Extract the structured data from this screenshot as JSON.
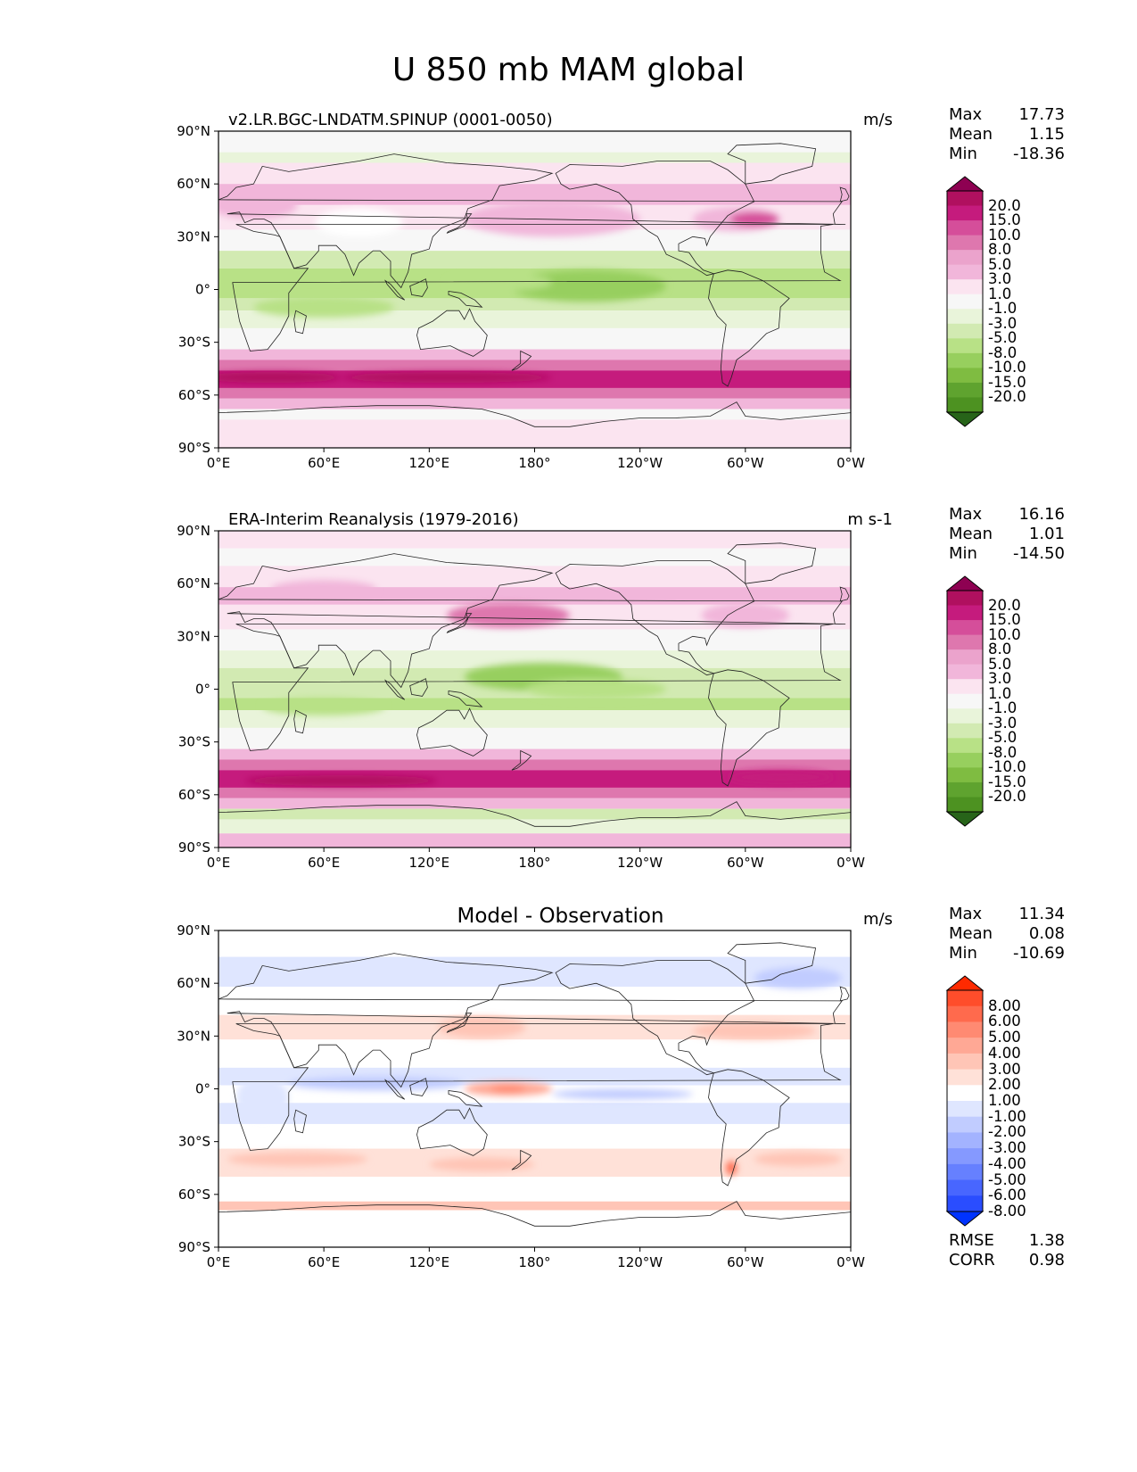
{
  "figure_title": "U 850 mb MAM global",
  "panels": [
    {
      "title": "v2.LR.BGC-LNDATM.SPINUP (0001-0050)",
      "title_style": "left",
      "units": "m/s",
      "stats": {
        "max_label": "Max",
        "max": "17.73",
        "mean_label": "Mean",
        "mean": "1.15",
        "min_label": "Min",
        "min": "-18.36"
      },
      "colorbar": "diverging_prgn",
      "pattern": "model"
    },
    {
      "title": "ERA-Interim Reanalysis (1979-2016)",
      "title_style": "left",
      "units": "m s-1",
      "stats": {
        "max_label": "Max",
        "max": "16.16",
        "mean_label": "Mean",
        "mean": "1.01",
        "min_label": "Min",
        "min": "-14.50"
      },
      "colorbar": "diverging_prgn",
      "pattern": "obs"
    },
    {
      "title": "Model - Observation",
      "title_style": "center",
      "units": "m/s",
      "stats": {
        "max_label": "Max",
        "max": "11.34",
        "mean_label": "Mean",
        "mean": "0.08",
        "min_label": "Min",
        "min": "-10.69"
      },
      "colorbar": "diverging_bwr",
      "pattern": "diff",
      "metrics": {
        "rmse_label": "RMSE",
        "rmse": "1.38",
        "corr_label": "CORR",
        "corr": "0.98"
      }
    }
  ],
  "axes": {
    "x_ticks": [
      "0°E",
      "60°E",
      "120°E",
      "180°",
      "120°W",
      "60°W",
      "0°W"
    ],
    "y_ticks": [
      "90°N",
      "60°N",
      "30°N",
      "0°",
      "30°S",
      "60°S",
      "90°S"
    ]
  },
  "colorbars": {
    "diverging_prgn": {
      "levels": [
        "20.0",
        "15.0",
        "10.0",
        "8.0",
        "5.0",
        "3.0",
        "1.0",
        "-1.0",
        "-3.0",
        "-5.0",
        "-8.0",
        "-10.0",
        "-15.0",
        "-20.0"
      ],
      "colors": [
        "#8e0152",
        "#b0105f",
        "#c51b7d",
        "#d54e9a",
        "#de77ae",
        "#eba3cc",
        "#f1b6da",
        "#fbe4f0",
        "#f7f7f7",
        "#e9f4da",
        "#d2eab2",
        "#b8e186",
        "#97cf5e",
        "#7fbc41",
        "#5fa32f",
        "#4d9221",
        "#276419"
      ]
    },
    "diverging_bwr": {
      "levels": [
        "8.00",
        "6.00",
        "5.00",
        "4.00",
        "3.00",
        "2.00",
        "1.00",
        "-1.00",
        "-2.00",
        "-3.00",
        "-4.00",
        "-5.00",
        "-6.00",
        "-8.00"
      ],
      "colors": [
        "#ff2a00",
        "#ff4d2b",
        "#ff6a4d",
        "#ff8a72",
        "#ffa895",
        "#ffc5b6",
        "#ffe1d8",
        "#ffffff",
        "#dfe6ff",
        "#c1ccff",
        "#a3b3ff",
        "#8599ff",
        "#6680ff",
        "#4866ff",
        "#2a4dff",
        "#0033ff"
      ]
    }
  }
}
